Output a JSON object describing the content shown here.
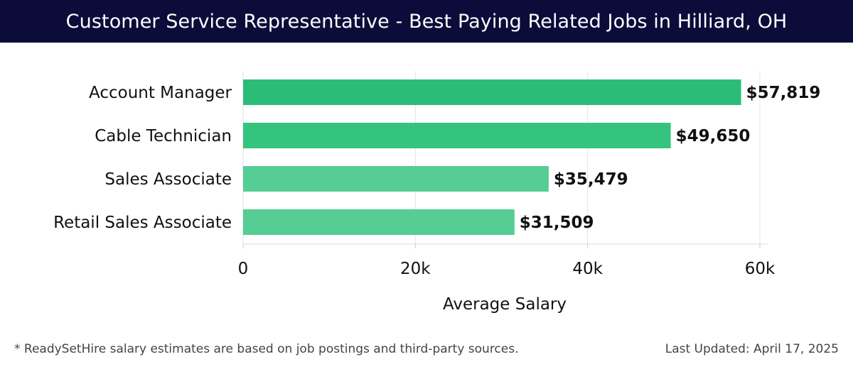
{
  "header": {
    "title": "Customer Service Representative - Best Paying Related Jobs in Hilliard, OH"
  },
  "chart_data": {
    "type": "bar",
    "orientation": "horizontal",
    "categories": [
      "Account Manager",
      "Cable Technician",
      "Sales Associate",
      "Retail Sales Associate"
    ],
    "values": [
      57819,
      49650,
      35479,
      31509
    ],
    "value_labels": [
      "$57,819",
      "$49,650",
      "$35,479",
      "$31,509"
    ],
    "bar_colors": [
      "#2bbd78",
      "#34c47d",
      "#55cd94",
      "#55cd94"
    ],
    "xlabel": "Average Salary",
    "ylabel": "",
    "xlim": [
      0,
      60000
    ],
    "xticks": [
      0,
      20000,
      40000,
      60000
    ],
    "xtick_labels": [
      "0",
      "20k",
      "40k",
      "60k"
    ],
    "grid": true
  },
  "footer": {
    "note": "* ReadySetHire salary estimates are based on job postings and third-party sources.",
    "updated": "Last Updated: April 17, 2025"
  }
}
